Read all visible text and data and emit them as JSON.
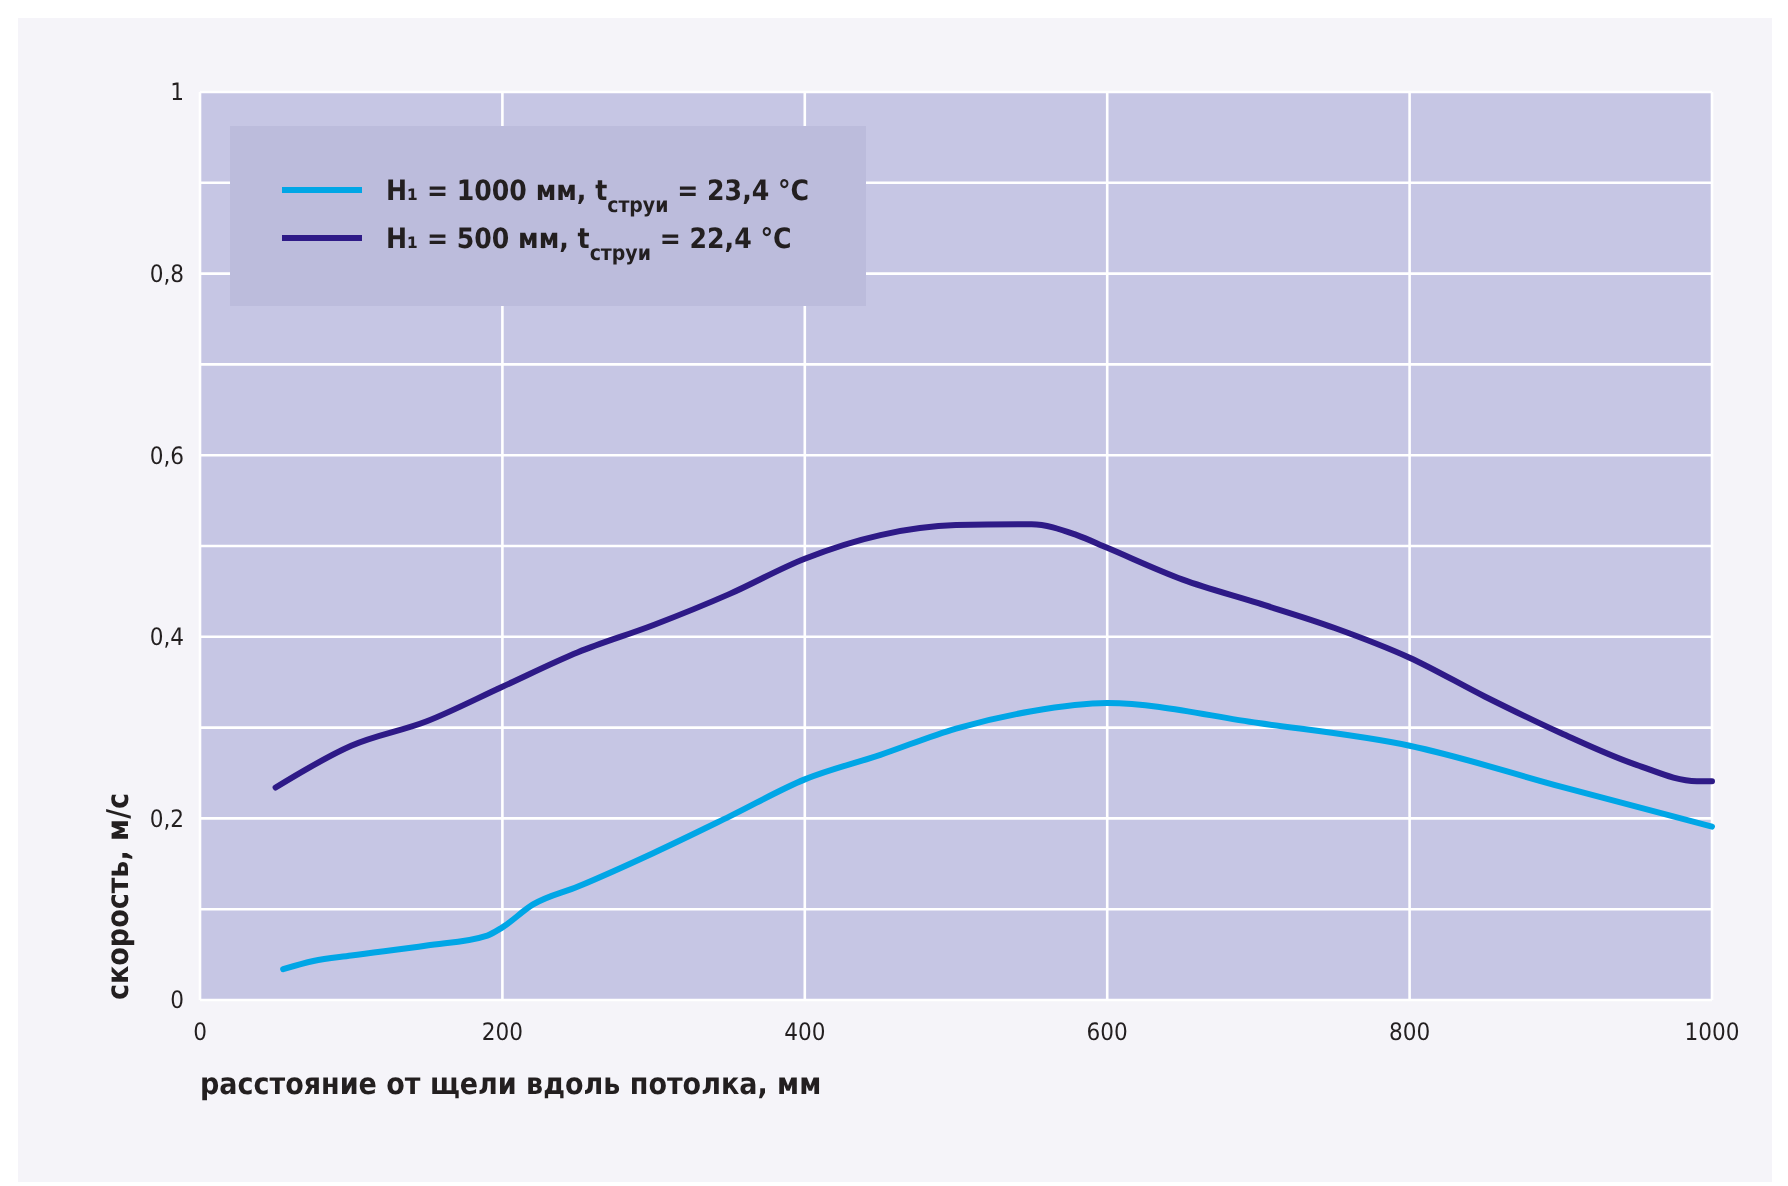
{
  "chart_data": {
    "type": "line",
    "xlabel": "расстояние от щели вдоль потолка, мм",
    "ylabel": "скорость, м/с",
    "xlim": [
      0,
      1000
    ],
    "xticks": [
      0,
      {
        "value": 200,
        "label": "200"
      },
      400,
      600,
      800,
      1000
    ],
    "ylim": [
      0,
      1
    ],
    "yticks": [
      {
        "value": 0,
        "label": "0"
      },
      {
        "value": 0.1,
        "label": null
      },
      {
        "value": 0.2,
        "label": "0,2"
      },
      {
        "value": 0.3,
        "label": null
      },
      {
        "value": 0.4,
        "label": "0,4"
      },
      {
        "value": 0.5,
        "label": null
      },
      {
        "value": 0.6,
        "label": "0,6"
      },
      {
        "value": 0.7,
        "label": null
      },
      {
        "value": 0.8,
        "label": "0,8"
      },
      {
        "value": 0.9,
        "label": null
      },
      {
        "value": 1,
        "label": "1"
      }
    ],
    "grid": true,
    "legend": "top left",
    "line_style": "solid",
    "marker": "none",
    "series": [
      {
        "name": "H₁ = 1000 мм, t$_{струи}$ = 23,4 °C",
        "color": "#00a6e6",
        "x": [
          55,
          75,
          100,
          150,
          190,
          200,
          220,
          250,
          300,
          350,
          400,
          450,
          500,
          550,
          600,
          700,
          800,
          900,
          1000
        ],
        "values": [
          0.034,
          0.043,
          0.049,
          0.06,
          0.071,
          0.08,
          0.105,
          0.125,
          0.162,
          0.202,
          0.243,
          0.27,
          0.299,
          0.318,
          0.327,
          0.305,
          0.28,
          0.235,
          0.191
        ]
      },
      {
        "name": "H₁ = 500 мм, t$_{струи}$ = 22,4 °C",
        "color": "#2e1a87",
        "x": [
          50,
          100,
          150,
          200,
          250,
          300,
          350,
          400,
          450,
          500,
          550,
          580,
          600,
          650,
          700,
          750,
          800,
          850,
          900,
          950,
          990,
          1000
        ],
        "values": [
          0.234,
          0.28,
          0.307,
          0.345,
          0.383,
          0.413,
          0.447,
          0.486,
          0.512,
          0.523,
          0.524,
          0.512,
          0.498,
          0.463,
          0.437,
          0.41,
          0.377,
          0.334,
          0.294,
          0.259,
          0.241,
          0.241
        ]
      }
    ]
  }
}
